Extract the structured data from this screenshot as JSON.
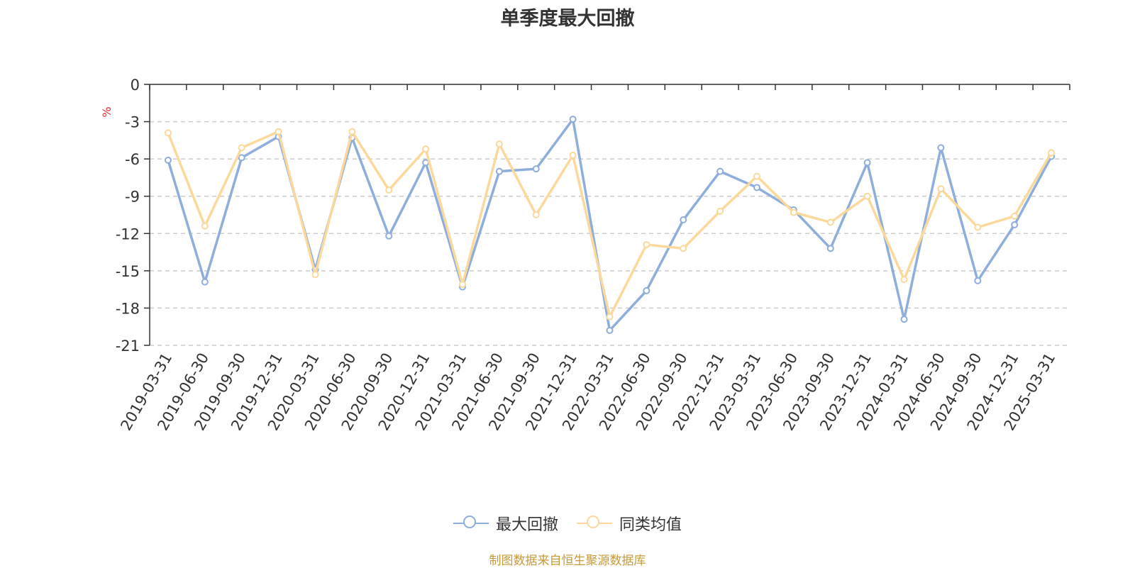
{
  "chart_data": {
    "type": "line",
    "title": "单季度最大回撤",
    "ylabel": "%",
    "ylim": [
      -21,
      0
    ],
    "yticks": [
      0,
      -3,
      -6,
      -9,
      -12,
      -15,
      -18,
      -21
    ],
    "grid": true,
    "legend_position": "bottom",
    "categories": [
      "2019-03-31",
      "2019-06-30",
      "2019-09-30",
      "2019-12-31",
      "2020-03-31",
      "2020-06-30",
      "2020-09-30",
      "2020-12-31",
      "2021-03-31",
      "2021-06-30",
      "2021-09-30",
      "2021-12-31",
      "2022-03-31",
      "2022-06-30",
      "2022-09-30",
      "2022-12-31",
      "2023-03-31",
      "2023-06-30",
      "2023-09-30",
      "2023-12-31",
      "2024-03-31",
      "2024-06-30",
      "2024-09-30",
      "2024-12-31",
      "2025-03-31"
    ],
    "series": [
      {
        "name": "最大回撤",
        "color": "#8eaedb",
        "values": [
          -6.1,
          -15.9,
          -5.9,
          -4.2,
          -14.9,
          -4.3,
          -12.2,
          -6.3,
          -16.3,
          -7.0,
          -6.8,
          -2.8,
          -19.8,
          -16.6,
          -10.9,
          -7.0,
          -8.3,
          -10.1,
          -13.2,
          -6.3,
          -18.9,
          -5.1,
          -15.8,
          -11.3,
          -5.8
        ]
      },
      {
        "name": "同类均值",
        "color": "#fbd89b",
        "values": [
          -3.9,
          -11.4,
          -5.1,
          -3.8,
          -15.3,
          -3.8,
          -8.5,
          -5.2,
          -16.1,
          -4.8,
          -10.5,
          -5.7,
          -18.7,
          -12.9,
          -13.2,
          -10.2,
          -7.4,
          -10.3,
          -11.1,
          -9.0,
          -15.7,
          -8.4,
          -11.5,
          -10.6,
          -5.5
        ]
      }
    ]
  },
  "footer": "制图数据来自恒生聚源数据库"
}
